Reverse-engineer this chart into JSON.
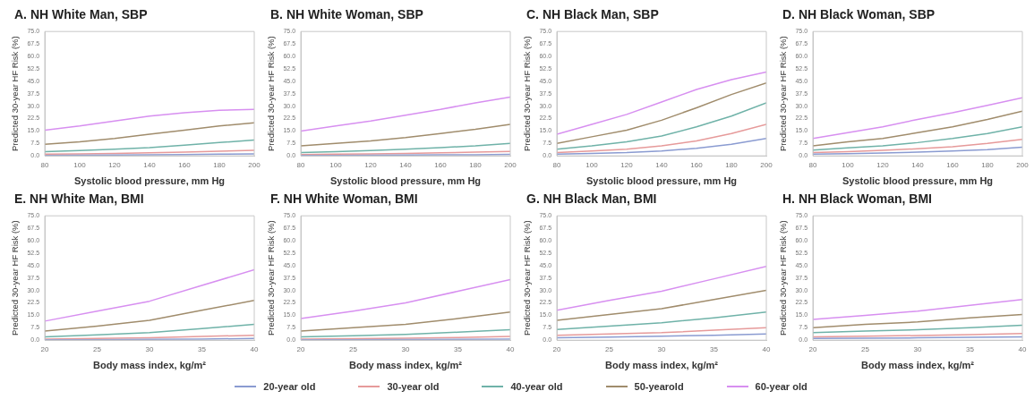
{
  "chart_data": [
    {
      "type": "line",
      "title": "A. NH White Man, SBP",
      "xlabel": "Systolic blood pressure, mm Hg",
      "ylabel": "Predicted 30-year HF Risk (%)",
      "x": [
        80,
        100,
        120,
        140,
        160,
        180,
        200
      ],
      "xlim": [
        80,
        200
      ],
      "xticks": [
        80,
        100,
        120,
        140,
        160,
        180,
        200
      ],
      "ylim": [
        0,
        75
      ],
      "yticks": [
        {
          "value": 0,
          "label": "0.0"
        },
        {
          "value": 7.5,
          "label": "7.5"
        },
        {
          "value": 15,
          "label": "15.0"
        },
        {
          "value": 22.5,
          "label": "22.5"
        },
        {
          "value": 30,
          "label": "30.0"
        },
        {
          "value": 37.5,
          "label": "37.5"
        },
        {
          "value": 45,
          "label": "45.0"
        },
        {
          "value": 52.5,
          "label": "52.5"
        },
        {
          "value": 60,
          "label": "60.0"
        },
        {
          "value": 67.5,
          "label": "67.5"
        },
        {
          "value": 75,
          "label": "75.0"
        }
      ],
      "grid": false,
      "marker": "none",
      "line_style": "solid",
      "legend": "bottom",
      "series": [
        {
          "name": "20-year old",
          "color": "#8a9bd1",
          "values": [
            0.3,
            0.4,
            0.5,
            0.6,
            0.8,
            1,
            1.2
          ]
        },
        {
          "name": "30-year old",
          "color": "#e69a9a",
          "values": [
            1,
            1.2,
            1.5,
            1.8,
            2.2,
            2.8,
            3.3
          ]
        },
        {
          "name": "40-year old",
          "color": "#6fb2a8",
          "values": [
            2.5,
            3.2,
            4,
            5,
            6.5,
            8,
            9.5
          ]
        },
        {
          "name": "50-yearold",
          "color": "#a08c6c",
          "values": [
            7,
            8.5,
            10.5,
            13,
            15.5,
            18,
            20
          ]
        },
        {
          "name": "60-year old",
          "color": "#d78ff0",
          "values": [
            15.5,
            18,
            21,
            24,
            26,
            27.5,
            28
          ]
        }
      ]
    },
    {
      "type": "line",
      "title": "B. NH White Woman, SBP",
      "xlabel": "Systolic blood pressure, mm Hg",
      "ylabel": "Predicted 30-year HF Risk (%)",
      "x": [
        80,
        100,
        120,
        140,
        160,
        180,
        200
      ],
      "xlim": [
        80,
        200
      ],
      "xticks": [
        80,
        100,
        120,
        140,
        160,
        180,
        200
      ],
      "ylim": [
        0,
        75
      ],
      "yticks": [
        {
          "value": 0,
          "label": "0.0"
        },
        {
          "value": 7.5,
          "label": "7.5"
        },
        {
          "value": 15,
          "label": "15.0"
        },
        {
          "value": 22.5,
          "label": "22.5"
        },
        {
          "value": 30,
          "label": "30.0"
        },
        {
          "value": 37.5,
          "label": "37.5"
        },
        {
          "value": 45,
          "label": "45.0"
        },
        {
          "value": 52.5,
          "label": "52.5"
        },
        {
          "value": 60,
          "label": "60.0"
        },
        {
          "value": 67.5,
          "label": "67.5"
        },
        {
          "value": 75,
          "label": "75.0"
        }
      ],
      "grid": false,
      "marker": "none",
      "line_style": "solid",
      "series": [
        {
          "color": "#8a9bd1",
          "values": [
            0.2,
            0.3,
            0.4,
            0.5,
            0.6,
            0.7,
            0.9
          ]
        },
        {
          "color": "#e69a9a",
          "values": [
            0.8,
            1,
            1.2,
            1.5,
            1.8,
            2.2,
            2.7
          ]
        },
        {
          "color": "#6fb2a8",
          "values": [
            2,
            2.5,
            3.2,
            4,
            5,
            6,
            7.5
          ]
        },
        {
          "color": "#a08c6c",
          "values": [
            6,
            7.5,
            9,
            11,
            13.5,
            16,
            19
          ]
        },
        {
          "color": "#d78ff0",
          "values": [
            15,
            18,
            21,
            24.5,
            28,
            32,
            35.5
          ]
        }
      ]
    },
    {
      "type": "line",
      "title": "C. NH Black Man, SBP",
      "xlabel": "Systolic blood pressure, mm Hg",
      "ylabel": "Predicted 30-year HF Risk (%)",
      "x": [
        80,
        100,
        120,
        140,
        160,
        180,
        200
      ],
      "xlim": [
        80,
        200
      ],
      "xticks": [
        80,
        100,
        120,
        140,
        160,
        180,
        200
      ],
      "ylim": [
        0,
        75
      ],
      "yticks": [
        {
          "value": 0,
          "label": "0.0"
        },
        {
          "value": 7.5,
          "label": "7.5"
        },
        {
          "value": 15,
          "label": "15.0"
        },
        {
          "value": 22.5,
          "label": "22.5"
        },
        {
          "value": 30,
          "label": "30.0"
        },
        {
          "value": 37.5,
          "label": "37.5"
        },
        {
          "value": 45,
          "label": "45.0"
        },
        {
          "value": 52.5,
          "label": "52.5"
        },
        {
          "value": 60,
          "label": "60.0"
        },
        {
          "value": 67.5,
          "label": "67.5"
        },
        {
          "value": 75,
          "label": "75.0"
        }
      ],
      "grid": false,
      "marker": "none",
      "line_style": "solid",
      "series": [
        {
          "color": "#8a9bd1",
          "values": [
            1,
            1.5,
            2,
            3,
            4.5,
            7,
            10.5
          ]
        },
        {
          "color": "#e69a9a",
          "values": [
            2,
            3,
            4,
            6,
            9,
            13.5,
            19
          ]
        },
        {
          "color": "#6fb2a8",
          "values": [
            4,
            6,
            8.5,
            12,
            17.5,
            24,
            32
          ]
        },
        {
          "color": "#a08c6c",
          "values": [
            7.5,
            11.5,
            15.5,
            21.5,
            29,
            37,
            44
          ]
        },
        {
          "color": "#d78ff0",
          "values": [
            13,
            19,
            25,
            32.5,
            40,
            46,
            50.5
          ]
        }
      ]
    },
    {
      "type": "line",
      "title": "D. NH Black Woman, SBP",
      "xlabel": "Systolic blood pressure, mm Hg",
      "ylabel": "Predicted 30-year HF Risk (%)",
      "x": [
        80,
        100,
        120,
        140,
        160,
        180,
        200
      ],
      "xlim": [
        80,
        200
      ],
      "xticks": [
        80,
        100,
        120,
        140,
        160,
        180,
        200
      ],
      "ylim": [
        0,
        75
      ],
      "yticks": [
        {
          "value": 0,
          "label": "0.0"
        },
        {
          "value": 7.5,
          "label": "7.5"
        },
        {
          "value": 15,
          "label": "15.0"
        },
        {
          "value": 22.5,
          "label": "22.5"
        },
        {
          "value": 30,
          "label": "30.0"
        },
        {
          "value": 37.5,
          "label": "37.5"
        },
        {
          "value": 45,
          "label": "45.0"
        },
        {
          "value": 52.5,
          "label": "52.5"
        },
        {
          "value": 60,
          "label": "60.0"
        },
        {
          "value": 67.5,
          "label": "67.5"
        },
        {
          "value": 75,
          "label": "75.0"
        }
      ],
      "grid": false,
      "marker": "none",
      "line_style": "solid",
      "series": [
        {
          "color": "#8a9bd1",
          "values": [
            1,
            1.3,
            1.7,
            2.2,
            2.9,
            3.8,
            5.2
          ]
        },
        {
          "color": "#e69a9a",
          "values": [
            2,
            2.6,
            3.3,
            4.3,
            5.5,
            7.5,
            10
          ]
        },
        {
          "color": "#6fb2a8",
          "values": [
            3.5,
            4.8,
            6,
            8,
            10.5,
            13.5,
            17.5
          ]
        },
        {
          "color": "#a08c6c",
          "values": [
            6,
            8.5,
            10.5,
            14,
            17.5,
            22,
            27
          ]
        },
        {
          "color": "#d78ff0",
          "values": [
            10.5,
            14,
            17.5,
            22,
            26,
            30.5,
            35
          ]
        }
      ]
    },
    {
      "type": "line",
      "title": "E. NH White Man, BMI",
      "xlabel": "Body mass index, kg/m²",
      "ylabel": "Predicted 30-year HF Risk (%)",
      "x": [
        20,
        25,
        30,
        35,
        40
      ],
      "xlim": [
        20,
        40
      ],
      "xticks": [
        20,
        25,
        30,
        35,
        40
      ],
      "ylim": [
        0,
        75
      ],
      "yticks": [
        {
          "value": 0,
          "label": "0.0"
        },
        {
          "value": 7.5,
          "label": "7.5"
        },
        {
          "value": 15,
          "label": "15.0"
        },
        {
          "value": 22.5,
          "label": "22.5"
        },
        {
          "value": 30,
          "label": "30.0"
        },
        {
          "value": 37.5,
          "label": "37.5"
        },
        {
          "value": 45,
          "label": "45.0"
        },
        {
          "value": 52.5,
          "label": "52.5"
        },
        {
          "value": 60,
          "label": "60.0"
        },
        {
          "value": 67.5,
          "label": "67.5"
        },
        {
          "value": 75,
          "label": "75.0"
        }
      ],
      "grid": false,
      "marker": "none",
      "line_style": "solid",
      "series": [
        {
          "color": "#8a9bd1",
          "values": [
            0.2,
            0.3,
            0.5,
            0.7,
            1
          ]
        },
        {
          "color": "#e69a9a",
          "values": [
            0.7,
            1,
            1.5,
            2.2,
            3
          ]
        },
        {
          "color": "#6fb2a8",
          "values": [
            2,
            3.2,
            4.5,
            7,
            9.5
          ]
        },
        {
          "color": "#a08c6c",
          "values": [
            5.5,
            8.5,
            12,
            18,
            24
          ]
        },
        {
          "color": "#d78ff0",
          "values": [
            11.5,
            17.5,
            23.5,
            33,
            42.5
          ]
        }
      ]
    },
    {
      "type": "line",
      "title": "F. NH White Woman, BMI",
      "xlabel": "Body mass index, kg/m²",
      "ylabel": "Predicted 30-year HF Risk (%)",
      "x": [
        20,
        25,
        30,
        35,
        40
      ],
      "xlim": [
        20,
        40
      ],
      "xticks": [
        20,
        25,
        30,
        35,
        40
      ],
      "ylim": [
        0,
        75
      ],
      "yticks": [
        {
          "value": 0,
          "label": "0.0"
        },
        {
          "value": 7.5,
          "label": "7.5"
        },
        {
          "value": 15,
          "label": "15.0"
        },
        {
          "value": 22.5,
          "label": "22.5"
        },
        {
          "value": 30,
          "label": "30.0"
        },
        {
          "value": 37.5,
          "label": "37.5"
        },
        {
          "value": 45,
          "label": "45.0"
        },
        {
          "value": 52.5,
          "label": "52.5"
        },
        {
          "value": 60,
          "label": "60.0"
        },
        {
          "value": 67.5,
          "label": "67.5"
        },
        {
          "value": 75,
          "label": "75.0"
        }
      ],
      "grid": false,
      "marker": "none",
      "line_style": "solid",
      "series": [
        {
          "color": "#8a9bd1",
          "values": [
            0.2,
            0.3,
            0.4,
            0.5,
            0.7
          ]
        },
        {
          "color": "#e69a9a",
          "values": [
            0.6,
            0.9,
            1.2,
            1.6,
            2.2
          ]
        },
        {
          "color": "#6fb2a8",
          "values": [
            2,
            2.7,
            3.5,
            4.8,
            6.3
          ]
        },
        {
          "color": "#a08c6c",
          "values": [
            5.5,
            7.5,
            9.5,
            13,
            17
          ]
        },
        {
          "color": "#d78ff0",
          "values": [
            13,
            17.5,
            22.5,
            29.5,
            36.5
          ]
        }
      ]
    },
    {
      "type": "line",
      "title": "G. NH Black Man, BMI",
      "xlabel": "Body mass index, kg/m²",
      "ylabel": "Predicted 30-year HF Risk (%)",
      "x": [
        20,
        25,
        30,
        35,
        40
      ],
      "xlim": [
        20,
        40
      ],
      "xticks": [
        20,
        25,
        30,
        35,
        40
      ],
      "ylim": [
        0,
        75
      ],
      "yticks": [
        {
          "value": 0,
          "label": "0.0"
        },
        {
          "value": 7.5,
          "label": "7.5"
        },
        {
          "value": 15,
          "label": "15.0"
        },
        {
          "value": 22.5,
          "label": "22.5"
        },
        {
          "value": 30,
          "label": "30.0"
        },
        {
          "value": 37.5,
          "label": "37.5"
        },
        {
          "value": 45,
          "label": "45.0"
        },
        {
          "value": 52.5,
          "label": "52.5"
        },
        {
          "value": 60,
          "label": "60.0"
        },
        {
          "value": 67.5,
          "label": "67.5"
        },
        {
          "value": 75,
          "label": "75.0"
        }
      ],
      "grid": false,
      "marker": "none",
      "line_style": "solid",
      "series": [
        {
          "color": "#8a9bd1",
          "values": [
            1.5,
            1.9,
            2.4,
            3,
            3.8
          ]
        },
        {
          "color": "#e69a9a",
          "values": [
            3,
            3.7,
            4.5,
            6,
            7.5
          ]
        },
        {
          "color": "#6fb2a8",
          "values": [
            6.5,
            8.5,
            10.5,
            13.5,
            17
          ]
        },
        {
          "color": "#a08c6c",
          "values": [
            12,
            15.5,
            19,
            24.5,
            30
          ]
        },
        {
          "color": "#d78ff0",
          "values": [
            18,
            24,
            29.5,
            37,
            44.5
          ]
        }
      ]
    },
    {
      "type": "line",
      "title": "H. NH Black Woman, BMI",
      "xlabel": "Body mass index, kg/m²",
      "ylabel": "Predicted 30-year HF Risk (%)",
      "x": [
        20,
        25,
        30,
        35,
        40
      ],
      "xlim": [
        20,
        40
      ],
      "xticks": [
        20,
        25,
        30,
        35,
        40
      ],
      "ylim": [
        0,
        75
      ],
      "yticks": [
        {
          "value": 0,
          "label": "0.0"
        },
        {
          "value": 7.5,
          "label": "7.5"
        },
        {
          "value": 15,
          "label": "15.0"
        },
        {
          "value": 22.5,
          "label": "22.5"
        },
        {
          "value": 30,
          "label": "30.0"
        },
        {
          "value": 37.5,
          "label": "37.5"
        },
        {
          "value": 45,
          "label": "45.0"
        },
        {
          "value": 52.5,
          "label": "52.5"
        },
        {
          "value": 60,
          "label": "60.0"
        },
        {
          "value": 67.5,
          "label": "67.5"
        },
        {
          "value": 75,
          "label": "75.0"
        }
      ],
      "grid": false,
      "marker": "none",
      "line_style": "solid",
      "series": [
        {
          "color": "#8a9bd1",
          "values": [
            1,
            1.2,
            1.4,
            1.7,
            2
          ]
        },
        {
          "color": "#e69a9a",
          "values": [
            2,
            2.4,
            2.8,
            3.3,
            4
          ]
        },
        {
          "color": "#6fb2a8",
          "values": [
            4.5,
            5.5,
            6.3,
            7.5,
            9
          ]
        },
        {
          "color": "#a08c6c",
          "values": [
            7.5,
            9.5,
            11,
            13.5,
            15.5
          ]
        },
        {
          "color": "#d78ff0",
          "values": [
            12.5,
            15,
            17.5,
            21,
            24.5
          ]
        }
      ]
    }
  ]
}
